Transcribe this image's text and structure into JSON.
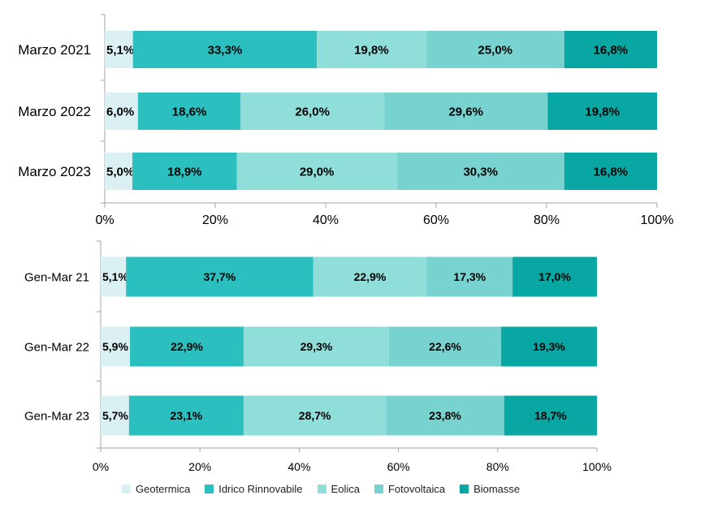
{
  "legend": [
    {
      "name": "Geotermica",
      "color": "#daf0f3"
    },
    {
      "name": "Idrico Rinnovabile",
      "color": "#2cbfbf"
    },
    {
      "name": "Eolica",
      "color": "#8fdeda"
    },
    {
      "name": "Fotovoltaica",
      "color": "#78d3d0"
    },
    {
      "name": "Biomasse",
      "color": "#09a7a3"
    }
  ],
  "chart_data": [
    {
      "type": "bar",
      "orientation": "horizontal",
      "stacked": true,
      "categories": [
        "Marzo 2021",
        "Marzo 2022",
        "Marzo 2023"
      ],
      "series": [
        {
          "name": "Geotermica",
          "values": [
            5.1,
            6.0,
            5.0
          ],
          "labels": [
            "5,1%",
            "6,0%",
            "5,0%"
          ]
        },
        {
          "name": "Idrico Rinnovabile",
          "values": [
            33.3,
            18.6,
            18.9
          ],
          "labels": [
            "33,3%",
            "18,6%",
            "18,9%"
          ]
        },
        {
          "name": "Eolica",
          "values": [
            19.8,
            26.0,
            29.0
          ],
          "labels": [
            "19,8%",
            "26,0%",
            "29,0%"
          ]
        },
        {
          "name": "Fotovoltaica",
          "values": [
            25.0,
            29.6,
            30.3
          ],
          "labels": [
            "25,0%",
            "29,6%",
            "30,3%"
          ]
        },
        {
          "name": "Biomasse",
          "values": [
            16.8,
            19.8,
            16.8
          ],
          "labels": [
            "16,8%",
            "19,8%",
            "16,8%"
          ]
        }
      ],
      "xlim": [
        0,
        100
      ],
      "xticks": [
        "0%",
        "20%",
        "40%",
        "60%",
        "80%",
        "100%"
      ],
      "grid": false
    },
    {
      "type": "bar",
      "orientation": "horizontal",
      "stacked": true,
      "categories": [
        "Gen-Mar 21",
        "Gen-Mar 22",
        "Gen-Mar 23"
      ],
      "series": [
        {
          "name": "Geotermica",
          "values": [
            5.1,
            5.9,
            5.7
          ],
          "labels": [
            "5,1%",
            "5,9%",
            "5,7%"
          ]
        },
        {
          "name": "Idrico Rinnovabile",
          "values": [
            37.7,
            22.9,
            23.1
          ],
          "labels": [
            "37,7%",
            "22,9%",
            "23,1%"
          ]
        },
        {
          "name": "Eolica",
          "values": [
            22.9,
            29.3,
            28.7
          ],
          "labels": [
            "22,9%",
            "29,3%",
            "28,7%"
          ]
        },
        {
          "name": "Fotovoltaica",
          "values": [
            17.3,
            22.6,
            23.8
          ],
          "labels": [
            "17,3%",
            "22,6%",
            "23,8%"
          ]
        },
        {
          "name": "Biomasse",
          "values": [
            17.0,
            19.3,
            18.7
          ],
          "labels": [
            "17,0%",
            "19,3%",
            "18,7%"
          ]
        }
      ],
      "xlim": [
        0,
        100
      ],
      "xticks": [
        "0%",
        "20%",
        "40%",
        "60%",
        "80%",
        "100%"
      ],
      "grid": false,
      "legend_position": "bottom"
    }
  ]
}
